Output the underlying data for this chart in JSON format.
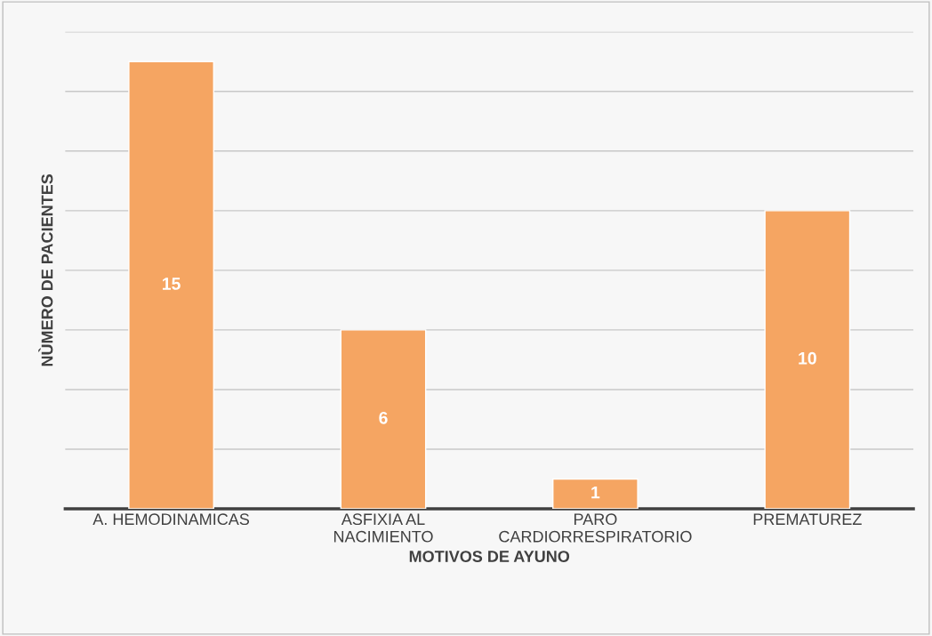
{
  "chart_data": {
    "type": "bar",
    "xlabel": "MOTIVOS DE AYUNO",
    "ylabel": "NÙMERO DE PACIENTES",
    "categories": [
      "A. HEMODINAMICAS",
      "ASFIXIA AL\nNACIMIENTO",
      "PARO\nCARDIORRESPIRATORIO",
      "PREMATUREZ"
    ],
    "values": [
      15,
      6,
      1,
      10
    ],
    "color": "#f5a562",
    "ylim": [
      0,
      16
    ],
    "yticks": [
      {
        "value": 0,
        "label": null
      },
      {
        "value": 2,
        "label": null
      },
      {
        "value": 4,
        "label": null
      },
      {
        "value": 6,
        "label": null
      },
      {
        "value": 8,
        "label": null
      },
      {
        "value": 10,
        "label": null
      },
      {
        "value": 12,
        "label": null
      },
      {
        "value": 14,
        "label": null
      },
      {
        "value": 16,
        "label": null
      }
    ],
    "tick_labels": "x",
    "grid": "y",
    "data_labels": true,
    "legend": false
  }
}
